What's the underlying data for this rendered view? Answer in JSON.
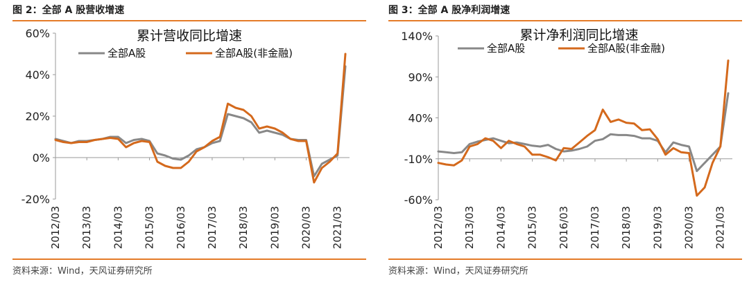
{
  "source_text": "资料来源：Wind，天风证券研究所",
  "colors": {
    "total": "#888888",
    "nonfin": "#d4691c",
    "accent": "#e47a27"
  },
  "chart_data": [
    {
      "type": "line",
      "caption": "图 2：全部 A 股营收增速",
      "title": "累计营收同比增速",
      "xlabel": "",
      "ylabel": "",
      "ylim": [
        -20,
        60
      ],
      "yticks": [
        -20,
        0,
        20,
        40,
        60
      ],
      "ytick_labels": [
        "-20%",
        "0%",
        "20%",
        "40%",
        "60%"
      ],
      "categories": [
        "2012/03",
        "2013/03",
        "2014/03",
        "2015/03",
        "2016/03",
        "2017/03",
        "2018/03",
        "2019/03",
        "2020/03",
        "2021/03"
      ],
      "grid": false,
      "legend_position": "top",
      "series": [
        {
          "name": "全部A股",
          "color": "#888888",
          "points": [
            [
              2012.0,
              9
            ],
            [
              2012.25,
              8
            ],
            [
              2012.5,
              7
            ],
            [
              2012.75,
              8
            ],
            [
              2013.0,
              8
            ],
            [
              2013.25,
              8.5
            ],
            [
              2013.5,
              9
            ],
            [
              2013.75,
              10
            ],
            [
              2014.0,
              10
            ],
            [
              2014.25,
              7
            ],
            [
              2014.5,
              8.5
            ],
            [
              2014.75,
              9
            ],
            [
              2015.0,
              8
            ],
            [
              2015.25,
              2
            ],
            [
              2015.5,
              1
            ],
            [
              2015.75,
              -0.5
            ],
            [
              2016.0,
              -1
            ],
            [
              2016.25,
              1
            ],
            [
              2016.5,
              4
            ],
            [
              2016.75,
              5
            ],
            [
              2017.0,
              7
            ],
            [
              2017.25,
              8
            ],
            [
              2017.5,
              21
            ],
            [
              2017.75,
              20
            ],
            [
              2018.0,
              19
            ],
            [
              2018.25,
              17
            ],
            [
              2018.5,
              12
            ],
            [
              2018.75,
              13
            ],
            [
              2019.0,
              12
            ],
            [
              2019.25,
              11
            ],
            [
              2019.5,
              9
            ],
            [
              2019.75,
              8.5
            ],
            [
              2020.0,
              8.5
            ],
            [
              2020.25,
              -9
            ],
            [
              2020.5,
              -3
            ],
            [
              2020.75,
              -1
            ],
            [
              2021.0,
              1
            ],
            [
              2021.25,
              44
            ]
          ]
        },
        {
          "name": "全部A股(非金融)",
          "color": "#d4691c",
          "points": [
            [
              2012.0,
              8.5
            ],
            [
              2012.25,
              7.5
            ],
            [
              2012.5,
              7
            ],
            [
              2012.75,
              7.5
            ],
            [
              2013.0,
              7.5
            ],
            [
              2013.25,
              8.5
            ],
            [
              2013.5,
              9
            ],
            [
              2013.75,
              9.5
            ],
            [
              2014.0,
              9
            ],
            [
              2014.25,
              5
            ],
            [
              2014.5,
              7
            ],
            [
              2014.75,
              8
            ],
            [
              2015.0,
              7.5
            ],
            [
              2015.25,
              -2
            ],
            [
              2015.5,
              -4
            ],
            [
              2015.75,
              -5
            ],
            [
              2016.0,
              -5
            ],
            [
              2016.25,
              -2
            ],
            [
              2016.5,
              3
            ],
            [
              2016.75,
              5
            ],
            [
              2017.0,
              8
            ],
            [
              2017.25,
              10
            ],
            [
              2017.5,
              26
            ],
            [
              2017.75,
              24
            ],
            [
              2018.0,
              23
            ],
            [
              2018.25,
              20
            ],
            [
              2018.5,
              14
            ],
            [
              2018.75,
              15
            ],
            [
              2019.0,
              14
            ],
            [
              2019.25,
              12
            ],
            [
              2019.5,
              9
            ],
            [
              2019.75,
              8
            ],
            [
              2020.0,
              8
            ],
            [
              2020.25,
              -12
            ],
            [
              2020.5,
              -5
            ],
            [
              2020.75,
              -2
            ],
            [
              2021.0,
              2
            ],
            [
              2021.25,
              50
            ]
          ]
        }
      ]
    },
    {
      "type": "line",
      "caption": "图 3：全部 A 股净利润增速",
      "title": "累计净利润同比增速",
      "xlabel": "",
      "ylabel": "",
      "ylim": [
        -60,
        140
      ],
      "yticks": [
        -60,
        -10,
        40,
        90,
        140
      ],
      "ytick_labels": [
        "-60%",
        "-10%",
        "40%",
        "90%",
        "140%"
      ],
      "categories": [
        "2012/03",
        "2013/03",
        "2014/03",
        "2015/03",
        "2016/03",
        "2017/03",
        "2018/03",
        "2019/03",
        "2020/03",
        "2021/03"
      ],
      "grid": false,
      "legend_position": "top",
      "series": [
        {
          "name": "全部A股",
          "color": "#888888",
          "points": [
            [
              2012.0,
              -1
            ],
            [
              2012.25,
              -2
            ],
            [
              2012.5,
              -3
            ],
            [
              2012.75,
              -2
            ],
            [
              2013.0,
              8
            ],
            [
              2013.25,
              11
            ],
            [
              2013.5,
              13
            ],
            [
              2013.75,
              15
            ],
            [
              2014.0,
              12
            ],
            [
              2014.25,
              9
            ],
            [
              2014.5,
              10
            ],
            [
              2014.75,
              8
            ],
            [
              2015.0,
              6
            ],
            [
              2015.25,
              5
            ],
            [
              2015.5,
              7
            ],
            [
              2015.75,
              2
            ],
            [
              2016.0,
              -1
            ],
            [
              2016.25,
              0
            ],
            [
              2016.5,
              2
            ],
            [
              2016.75,
              5
            ],
            [
              2017.0,
              12
            ],
            [
              2017.25,
              14
            ],
            [
              2017.5,
              20
            ],
            [
              2017.75,
              19
            ],
            [
              2018.0,
              19
            ],
            [
              2018.25,
              18
            ],
            [
              2018.5,
              15
            ],
            [
              2018.75,
              15
            ],
            [
              2019.0,
              12
            ],
            [
              2019.25,
              -2
            ],
            [
              2019.5,
              10
            ],
            [
              2019.75,
              7
            ],
            [
              2020.0,
              5
            ],
            [
              2020.25,
              -25
            ],
            [
              2020.5,
              -15
            ],
            [
              2020.75,
              -5
            ],
            [
              2021.0,
              5
            ],
            [
              2021.25,
              70
            ]
          ]
        },
        {
          "name": "全部A股(非金融)",
          "color": "#d4691c",
          "points": [
            [
              2012.0,
              -15
            ],
            [
              2012.25,
              -17
            ],
            [
              2012.5,
              -18
            ],
            [
              2012.75,
              -12
            ],
            [
              2013.0,
              5
            ],
            [
              2013.25,
              8
            ],
            [
              2013.5,
              15
            ],
            [
              2013.75,
              12
            ],
            [
              2014.0,
              3
            ],
            [
              2014.25,
              12
            ],
            [
              2014.5,
              8
            ],
            [
              2014.75,
              5
            ],
            [
              2015.0,
              -5
            ],
            [
              2015.25,
              -5
            ],
            [
              2015.5,
              -8
            ],
            [
              2015.75,
              -12
            ],
            [
              2016.0,
              3
            ],
            [
              2016.25,
              2
            ],
            [
              2016.5,
              10
            ],
            [
              2016.75,
              18
            ],
            [
              2017.0,
              25
            ],
            [
              2017.25,
              50
            ],
            [
              2017.5,
              35
            ],
            [
              2017.75,
              38
            ],
            [
              2018.0,
              34
            ],
            [
              2018.25,
              33
            ],
            [
              2018.5,
              25
            ],
            [
              2018.75,
              26
            ],
            [
              2019.0,
              14
            ],
            [
              2019.25,
              -5
            ],
            [
              2019.5,
              3
            ],
            [
              2019.75,
              -2
            ],
            [
              2020.0,
              -3
            ],
            [
              2020.25,
              -55
            ],
            [
              2020.5,
              -45
            ],
            [
              2020.75,
              -15
            ],
            [
              2021.0,
              5
            ],
            [
              2021.25,
              110
            ]
          ]
        }
      ]
    }
  ]
}
